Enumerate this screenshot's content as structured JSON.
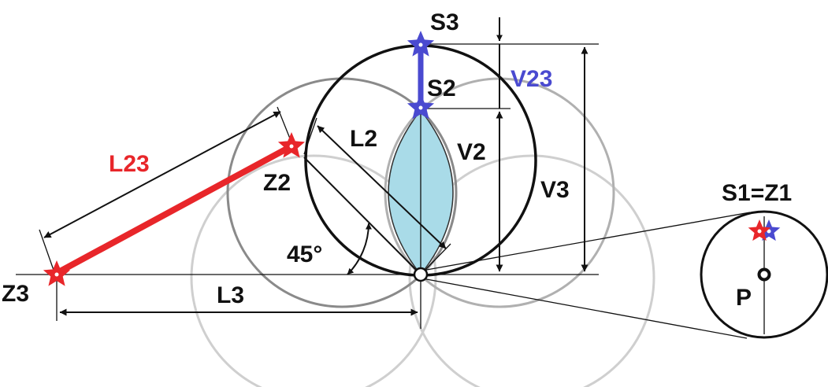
{
  "labels": {
    "s3": "S3",
    "s2": "S2",
    "v23": "V23",
    "l23": "L23",
    "l2": "L2",
    "v2": "V2",
    "z2": "Z2",
    "v3": "V3",
    "s1_z1": "S1=Z1",
    "angle": "45°",
    "z3": "Z3",
    "l3": "L3",
    "p": "P"
  },
  "colors": {
    "red": "#e8262a",
    "blue": "#4a4ad0",
    "lens_fill": "#a9dbe8",
    "circle_black": "#111111",
    "circle_mid": "#8a8a8a",
    "circle_light": "#c8c8c8"
  },
  "icons": {
    "red_star": "star-icon",
    "blue_star": "star-icon",
    "pivot": "ring-icon"
  }
}
